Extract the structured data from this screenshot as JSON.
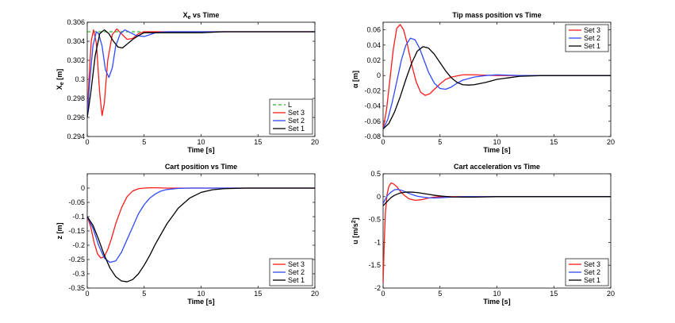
{
  "colors": {
    "set1": "#000000",
    "set2": "#2f4bff",
    "set3": "#ff1a1a",
    "L": "#29b829",
    "axis": "#000000",
    "background": "#ffffff"
  },
  "chart_data": [
    {
      "type": "line",
      "title": "X_e vs Time",
      "title_main": "X",
      "title_sub": "e",
      "title_rest": " vs Time",
      "xlabel": "Time [s]",
      "ylabel": "X_e [m]",
      "ylabel_main": "X",
      "ylabel_sub": "e",
      "ylabel_rest": " [m]",
      "xlim": [
        0,
        20
      ],
      "ylim": [
        0.294,
        0.306
      ],
      "xticks": [
        0,
        5,
        10,
        15,
        20
      ],
      "xtick_labels": [
        "0",
        "5",
        "10",
        "15",
        "20"
      ],
      "yticks": [
        0.294,
        0.296,
        0.298,
        0.3,
        0.302,
        0.304,
        0.306
      ],
      "ytick_labels": [
        "0.294",
        "0.296",
        "0.298",
        "0.3",
        "0.302",
        "0.304",
        "0.306"
      ],
      "legend": {
        "location": "bottom-right",
        "entries": [
          "L",
          "Set 3",
          "Set 2",
          "Set 1"
        ]
      },
      "series": [
        {
          "name": "L",
          "style": "dashed",
          "color_key": "L",
          "x": [
            0,
            5
          ],
          "y": [
            0.305,
            0.305
          ]
        },
        {
          "name": "Set 3",
          "color_key": "set3",
          "x": [
            0,
            0.15,
            0.35,
            0.55,
            0.8,
            1.1,
            1.3,
            1.5,
            1.8,
            2.2,
            2.6,
            3.0,
            3.5,
            4.0,
            4.5,
            5,
            6,
            7,
            8,
            10,
            20
          ],
          "y": [
            0.296,
            0.3,
            0.304,
            0.3052,
            0.3038,
            0.2985,
            0.2962,
            0.2975,
            0.302,
            0.3047,
            0.3053,
            0.3048,
            0.3042,
            0.3043,
            0.3048,
            0.305,
            0.305,
            0.305,
            0.305,
            0.305,
            0.305
          ]
        },
        {
          "name": "Set 2",
          "color_key": "set2",
          "x": [
            0,
            0.2,
            0.5,
            0.8,
            1.0,
            1.3,
            1.6,
            1.9,
            2.2,
            2.5,
            2.9,
            3.3,
            3.8,
            4.3,
            5.0,
            5.5,
            6,
            7,
            8,
            10,
            20
          ],
          "y": [
            0.296,
            0.2995,
            0.3035,
            0.305,
            0.3048,
            0.3035,
            0.301,
            0.3002,
            0.3012,
            0.3035,
            0.3048,
            0.3052,
            0.3049,
            0.3046,
            0.3045,
            0.3047,
            0.3049,
            0.305,
            0.305,
            0.305,
            0.305
          ]
        },
        {
          "name": "Set 1",
          "color_key": "set1",
          "x": [
            0,
            0.3,
            0.7,
            1.1,
            1.5,
            1.9,
            2.3,
            2.7,
            3.1,
            3.5,
            4,
            4.5,
            5,
            5.5,
            6,
            7,
            8,
            10,
            12,
            15,
            20
          ],
          "y": [
            0.296,
            0.2985,
            0.3025,
            0.3048,
            0.3052,
            0.3048,
            0.304,
            0.3034,
            0.3033,
            0.3037,
            0.3042,
            0.3046,
            0.3049,
            0.3049,
            0.3049,
            0.3049,
            0.3049,
            0.3049,
            0.305,
            0.305,
            0.305
          ]
        }
      ]
    },
    {
      "type": "line",
      "title": "Tip mass position vs Time",
      "xlabel": "Time [s]",
      "ylabel": "α [m]",
      "xlim": [
        0,
        20
      ],
      "ylim": [
        -0.08,
        0.07
      ],
      "xticks": [
        0,
        5,
        10,
        15,
        20
      ],
      "xtick_labels": [
        "0",
        "5",
        "10",
        "15",
        "20"
      ],
      "yticks": [
        -0.08,
        -0.06,
        -0.04,
        -0.02,
        0,
        0.02,
        0.04,
        0.06
      ],
      "ytick_labels": [
        "-0.08",
        "-0.06",
        "-0.04",
        "-0.02",
        "0",
        "0.02",
        "0.04",
        "0.06"
      ],
      "legend": {
        "location": "top-right",
        "entries": [
          "Set 3",
          "Set 2",
          "Set 1"
        ]
      },
      "series": [
        {
          "name": "Set 3",
          "color_key": "set3",
          "x": [
            0,
            0.3,
            0.6,
            0.9,
            1.2,
            1.5,
            1.8,
            2.1,
            2.5,
            2.9,
            3.3,
            3.7,
            4.1,
            4.5,
            5,
            5.5,
            6,
            7,
            8,
            9,
            10,
            15,
            20
          ],
          "y": [
            -0.07,
            -0.045,
            -0.005,
            0.035,
            0.062,
            0.067,
            0.06,
            0.043,
            0.015,
            -0.008,
            -0.022,
            -0.026,
            -0.024,
            -0.018,
            -0.011,
            -0.005,
            -0.002,
            0.001,
            0.001,
            0.0005,
            0,
            0,
            0
          ]
        },
        {
          "name": "Set 2",
          "color_key": "set2",
          "x": [
            0,
            0.4,
            0.8,
            1.2,
            1.6,
            2.0,
            2.4,
            2.8,
            3.2,
            3.6,
            4.0,
            4.5,
            5.0,
            5.5,
            6.0,
            6.5,
            7,
            8,
            9,
            10,
            12,
            15,
            20
          ],
          "y": [
            -0.07,
            -0.058,
            -0.035,
            -0.008,
            0.02,
            0.04,
            0.049,
            0.047,
            0.036,
            0.02,
            0.004,
            -0.01,
            -0.017,
            -0.018,
            -0.015,
            -0.01,
            -0.006,
            -0.002,
            0,
            0.001,
            0,
            0,
            0
          ]
        },
        {
          "name": "Set 1",
          "color_key": "set1",
          "x": [
            0,
            0.5,
            1.0,
            1.5,
            2.0,
            2.5,
            3.0,
            3.5,
            4.0,
            4.5,
            5.0,
            5.5,
            6.0,
            6.5,
            7.0,
            7.5,
            8.0,
            9,
            10,
            11,
            12,
            14,
            16,
            20
          ],
          "y": [
            -0.07,
            -0.063,
            -0.048,
            -0.028,
            -0.005,
            0.016,
            0.032,
            0.038,
            0.036,
            0.028,
            0.017,
            0.006,
            -0.003,
            -0.009,
            -0.012,
            -0.0125,
            -0.012,
            -0.009,
            -0.005,
            -0.003,
            -0.001,
            0,
            0,
            0
          ]
        }
      ]
    },
    {
      "type": "line",
      "title": "Cart position vs Time",
      "xlabel": "Time [s]",
      "ylabel": "z [m]",
      "xlim": [
        0,
        20
      ],
      "ylim": [
        -0.35,
        0.05
      ],
      "xticks": [
        0,
        5,
        10,
        15,
        20
      ],
      "xtick_labels": [
        "0",
        "5",
        "10",
        "15",
        "20"
      ],
      "yticks": [
        -0.35,
        -0.3,
        -0.25,
        -0.2,
        -0.15,
        -0.1,
        -0.05,
        0
      ],
      "ytick_labels": [
        "-0.35",
        "-0.3",
        "-0.25",
        "-0.2",
        "-0.15",
        "-0.1",
        "-0.05",
        "0"
      ],
      "legend": {
        "location": "bottom-right",
        "entries": [
          "Set 3",
          "Set 2",
          "Set 1"
        ]
      },
      "series": [
        {
          "name": "Set 3",
          "color_key": "set3",
          "x": [
            0,
            0.3,
            0.6,
            0.9,
            1.2,
            1.5,
            1.8,
            2.1,
            2.5,
            3.0,
            3.5,
            4.0,
            4.5,
            5.0,
            5.5,
            6,
            7,
            8,
            10,
            20
          ],
          "y": [
            -0.1,
            -0.135,
            -0.19,
            -0.23,
            -0.245,
            -0.24,
            -0.215,
            -0.18,
            -0.125,
            -0.07,
            -0.03,
            -0.01,
            -0.002,
            0,
            0.001,
            0.001,
            0,
            0,
            0,
            0
          ]
        },
        {
          "name": "Set 2",
          "color_key": "set2",
          "x": [
            0,
            0.5,
            1.0,
            1.5,
            2.0,
            2.5,
            3.0,
            3.5,
            4.0,
            4.5,
            5.0,
            5.5,
            6.0,
            6.5,
            7.0,
            8.0,
            9,
            10,
            12,
            20
          ],
          "y": [
            -0.1,
            -0.14,
            -0.2,
            -0.245,
            -0.26,
            -0.255,
            -0.225,
            -0.18,
            -0.135,
            -0.09,
            -0.058,
            -0.035,
            -0.02,
            -0.01,
            -0.005,
            -0.001,
            0,
            0,
            0,
            0
          ]
        },
        {
          "name": "Set 1",
          "color_key": "set1",
          "x": [
            0,
            0.5,
            1.0,
            1.5,
            2.0,
            2.5,
            3.0,
            3.5,
            4.0,
            4.5,
            5.0,
            5.5,
            6.0,
            7.0,
            8.0,
            9.0,
            10,
            11,
            12,
            14,
            16,
            20
          ],
          "y": [
            -0.1,
            -0.13,
            -0.18,
            -0.235,
            -0.28,
            -0.31,
            -0.325,
            -0.328,
            -0.32,
            -0.3,
            -0.27,
            -0.235,
            -0.195,
            -0.125,
            -0.07,
            -0.035,
            -0.015,
            -0.006,
            -0.002,
            0,
            0,
            0
          ]
        }
      ]
    },
    {
      "type": "line",
      "title": "Cart acceleration vs Time",
      "xlabel": "Time [s]",
      "ylabel": "u [m/s^2]",
      "ylabel_main": "u [m/s",
      "ylabel_sup": "2",
      "ylabel_rest": "]",
      "xlim": [
        0,
        20
      ],
      "ylim": [
        -2,
        0.5
      ],
      "xticks": [
        0,
        5,
        10,
        15,
        20
      ],
      "xtick_labels": [
        "0",
        "5",
        "10",
        "15",
        "20"
      ],
      "yticks": [
        -2,
        -1.5,
        -1,
        -0.5,
        0,
        0.5
      ],
      "ytick_labels": [
        "-2",
        "-1.5",
        "-1",
        "-0.5",
        "0",
        "0.5"
      ],
      "legend": {
        "location": "bottom-right",
        "entries": [
          "Set 3",
          "Set 2",
          "Set 1"
        ]
      },
      "series": [
        {
          "name": "Set 3",
          "color_key": "set3",
          "x": [
            0,
            0.1,
            0.2,
            0.35,
            0.5,
            0.7,
            0.9,
            1.2,
            1.5,
            1.9,
            2.3,
            2.8,
            3.3,
            4.0,
            4.5,
            5,
            6,
            8,
            10,
            20
          ],
          "y": [
            -1.9,
            -1.0,
            -0.35,
            0.05,
            0.22,
            0.3,
            0.28,
            0.22,
            0.12,
            0.02,
            -0.05,
            -0.08,
            -0.07,
            -0.03,
            -0.01,
            0,
            0,
            0,
            0,
            0
          ]
        },
        {
          "name": "Set 2",
          "color_key": "set2",
          "x": [
            0,
            0.2,
            0.4,
            0.7,
            1.0,
            1.3,
            1.6,
            2.0,
            2.5,
            3.0,
            3.5,
            4.0,
            4.5,
            5.0,
            6,
            7,
            8,
            10,
            20
          ],
          "y": [
            -0.15,
            -0.05,
            0.03,
            0.1,
            0.15,
            0.16,
            0.14,
            0.1,
            0.05,
            0.01,
            -0.01,
            -0.025,
            -0.03,
            -0.025,
            -0.01,
            0,
            0,
            0,
            0
          ]
        },
        {
          "name": "Set 1",
          "color_key": "set1",
          "x": [
            0,
            0.3,
            0.7,
            1.0,
            1.5,
            2.0,
            2.5,
            3.0,
            3.5,
            4.0,
            4.5,
            5.0,
            5.5,
            6.0,
            7.0,
            8.0,
            9,
            10,
            12,
            20
          ],
          "y": [
            -0.2,
            -0.12,
            -0.02,
            0.03,
            0.08,
            0.1,
            0.1,
            0.09,
            0.07,
            0.05,
            0.03,
            0.015,
            0.005,
            -0.005,
            -0.01,
            -0.01,
            -0.005,
            0,
            0,
            0
          ]
        }
      ]
    }
  ]
}
